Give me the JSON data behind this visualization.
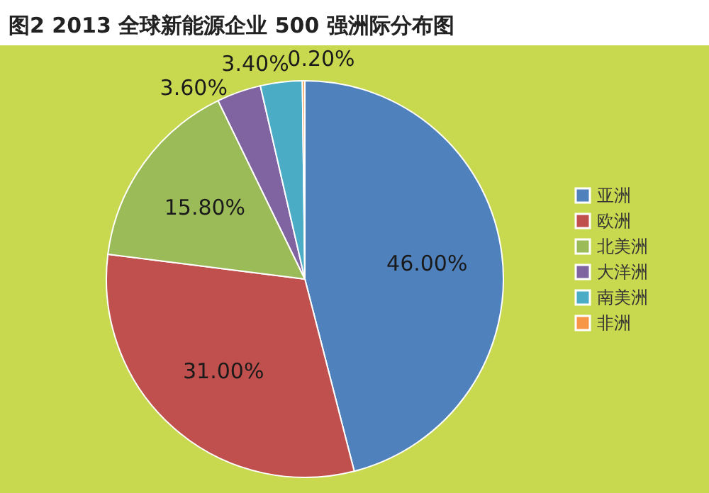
{
  "chart_data": {
    "type": "pie",
    "title": "图2  2013 全球新能源企业 500 强洲际分布图",
    "categories": [
      "亚洲",
      "欧洲",
      "北美洲",
      "大洋洲",
      "南美洲",
      "非洲"
    ],
    "values": [
      46,
      31,
      15.8,
      3.6,
      3.4,
      0.2
    ],
    "colors": [
      "#4f81bd",
      "#c0504d",
      "#9bbb59",
      "#8064a2",
      "#4bacc6",
      "#f79646"
    ],
    "value_labels": [
      "46.00%",
      "31.00%",
      "15.80%",
      "3.60%",
      "3.40%",
      "0.20%"
    ],
    "legend": "right"
  }
}
